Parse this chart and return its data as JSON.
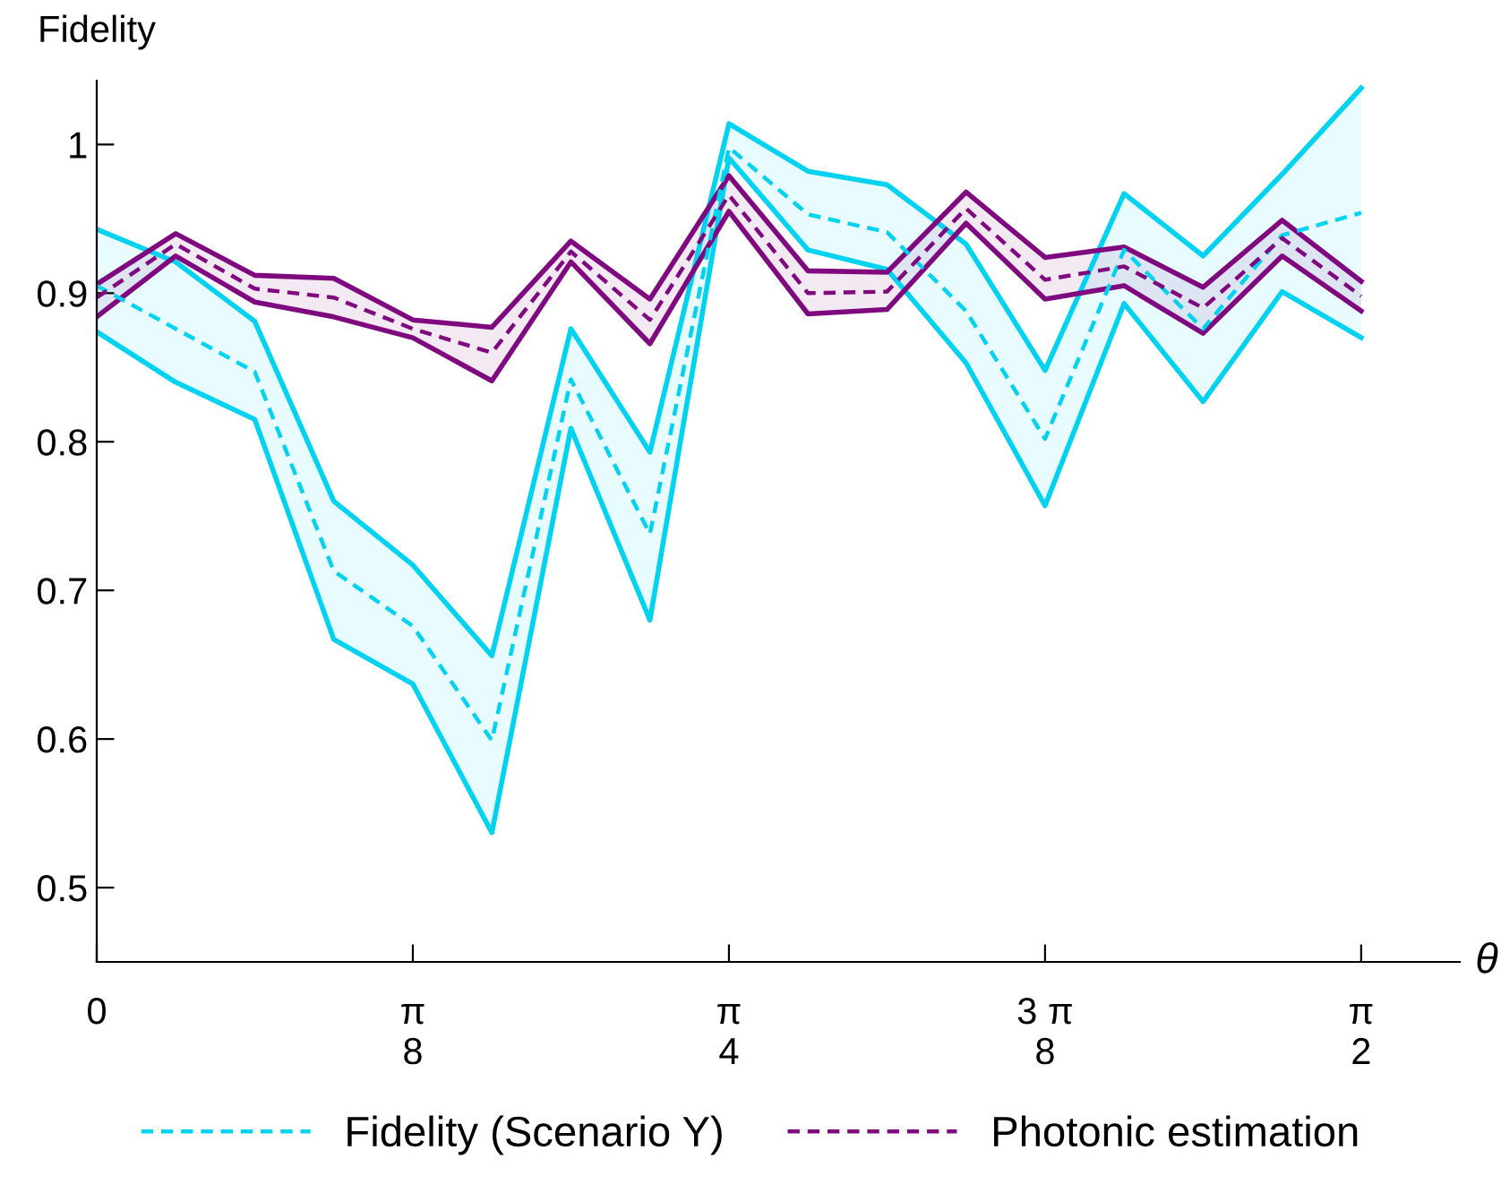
{
  "chart_data": {
    "type": "line",
    "xlabel": "θ",
    "ylabel": "Fidelity",
    "categories": [
      "0",
      null,
      null,
      null,
      "π\n8",
      null,
      null,
      null,
      "π\n4",
      null,
      null,
      null,
      "3 π\n8",
      null,
      null,
      null,
      "π\n2"
    ],
    "series": [
      {
        "color": "#00d2f0",
        "line_style": "solid",
        "values": [
          0.874,
          0.84,
          0.815,
          0.667,
          0.637,
          0.537,
          0.809,
          0.68,
          0.991,
          0.929,
          0.916,
          0.853,
          0.757,
          0.893,
          0.827,
          0.901,
          0.87
        ]
      },
      {
        "color": "#00d2f0",
        "line_style": "solid",
        "values": [
          0.943,
          0.921,
          0.881,
          0.76,
          0.717,
          0.656,
          0.876,
          0.793,
          1.014,
          0.982,
          0.973,
          0.933,
          0.848,
          0.967,
          0.925,
          0.98,
          1.038
        ]
      },
      {
        "color": "#7f0a7f",
        "line_style": "solid",
        "values": [
          0.884,
          0.925,
          0.894,
          0.884,
          0.87,
          0.841,
          0.921,
          0.866,
          0.955,
          0.886,
          0.889,
          0.947,
          0.896,
          0.905,
          0.873,
          0.925,
          0.888
        ]
      },
      {
        "color": "#7f0a7f",
        "line_style": "solid",
        "values": [
          0.906,
          0.94,
          0.912,
          0.91,
          0.882,
          0.877,
          0.935,
          0.896,
          0.979,
          0.915,
          0.914,
          0.968,
          0.924,
          0.931,
          0.904,
          0.949,
          0.908
        ]
      },
      {
        "name": "Fidelity (Scenario Y)",
        "color": "#00d2f0",
        "values": [
          0.905,
          0.876,
          0.847,
          0.713,
          0.676,
          0.599,
          0.842,
          0.738,
          0.998,
          0.953,
          0.941,
          0.888,
          0.802,
          0.929,
          0.876,
          0.939,
          0.954
        ],
        "lower": [
          0.874,
          0.84,
          0.815,
          0.667,
          0.637,
          0.537,
          0.809,
          0.68,
          0.991,
          0.929,
          0.916,
          0.853,
          0.757,
          0.893,
          0.827,
          0.901,
          0.87
        ],
        "upper": [
          0.943,
          0.921,
          0.881,
          0.76,
          0.717,
          0.656,
          0.876,
          0.793,
          1.014,
          0.982,
          0.973,
          0.933,
          0.848,
          0.967,
          0.925,
          0.98,
          1.038
        ]
      },
      {
        "name": "Photonic estimation",
        "color": "#7f0a7f",
        "values": [
          0.897,
          0.933,
          0.903,
          0.897,
          0.876,
          0.86,
          0.928,
          0.882,
          0.966,
          0.9,
          0.901,
          0.957,
          0.909,
          0.918,
          0.89,
          0.937,
          0.898
        ],
        "lower": [
          0.884,
          0.925,
          0.894,
          0.884,
          0.87,
          0.841,
          0.921,
          0.866,
          0.955,
          0.886,
          0.889,
          0.947,
          0.896,
          0.905,
          0.873,
          0.925,
          0.888
        ],
        "upper": [
          0.906,
          0.94,
          0.912,
          0.91,
          0.882,
          0.877,
          0.935,
          0.896,
          0.979,
          0.915,
          0.914,
          0.968,
          0.924,
          0.931,
          0.904,
          0.949,
          0.908
        ]
      }
    ],
    "line_style": "dashed",
    "marker": "none",
    "ylim": [
      0.45,
      1.043
    ],
    "yticks": [
      0.5,
      0.6,
      0.7,
      0.8,
      0.9,
      1
    ],
    "grid": false,
    "legend": "bottom"
  }
}
